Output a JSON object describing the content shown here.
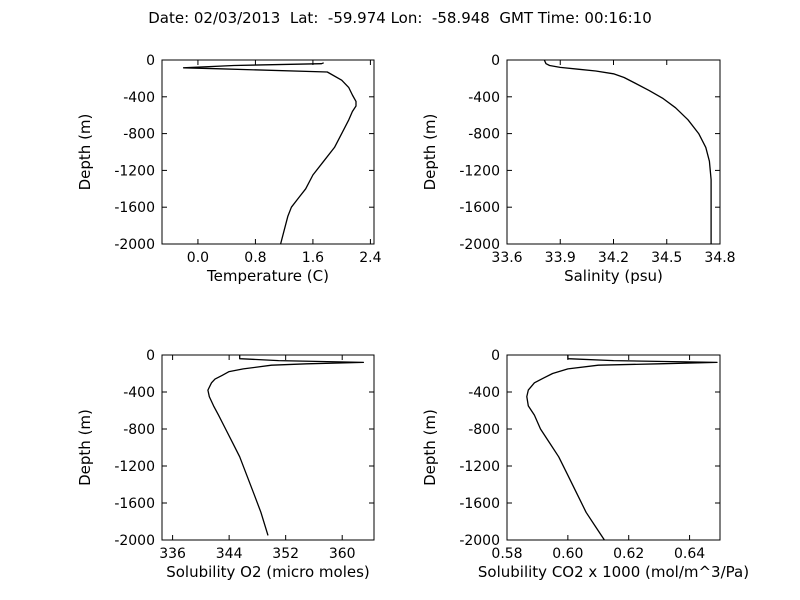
{
  "figure": {
    "suptitle": "Date: 02/03/2013  Lat:  -59.974 Lon:  -58.948  GMT Time: 00:16:10"
  },
  "chart_data": [
    {
      "type": "line",
      "xlabel": "Temperature (C)",
      "ylabel": "Depth (m)",
      "xlim": [
        -0.5,
        2.45
      ],
      "ylim": [
        -2000,
        0
      ],
      "xticks": [
        "0.0",
        "0.8",
        "1.6",
        "2.4"
      ],
      "xtick_values": [
        0.0,
        0.8,
        1.6,
        2.4
      ],
      "yticks": [
        "0",
        "-400",
        "-800",
        "-1200",
        "-1600",
        "-2000"
      ],
      "ytick_values": [
        0,
        -400,
        -800,
        -1200,
        -1600,
        -2000
      ],
      "series": [
        {
          "x": [
            1.75,
            1.72,
            0.5,
            -0.2,
            0.25,
            1.8,
            2.0,
            2.1,
            2.15,
            2.2,
            2.2,
            2.15,
            2.1,
            2.0,
            1.9,
            1.75,
            1.6,
            1.5,
            1.4,
            1.3,
            1.25,
            1.2,
            1.15
          ],
          "y": [
            -30,
            -40,
            -60,
            -85,
            -95,
            -130,
            -220,
            -300,
            -380,
            -450,
            -500,
            -560,
            -650,
            -800,
            -950,
            -1100,
            -1250,
            -1400,
            -1500,
            -1600,
            -1700,
            -1850,
            -2000
          ]
        }
      ]
    },
    {
      "type": "line",
      "xlabel": "Salinity (psu)",
      "ylabel": "Depth (m)",
      "xlim": [
        33.6,
        34.8
      ],
      "ylim": [
        -2000,
        0
      ],
      "xticks": [
        "33.6",
        "33.9",
        "34.2",
        "34.5",
        "34.8"
      ],
      "xtick_values": [
        33.6,
        33.9,
        34.2,
        34.5,
        34.8
      ],
      "yticks": [
        "0",
        "-400",
        "-800",
        "-1200",
        "-1600",
        "-2000"
      ],
      "ytick_values": [
        0,
        -400,
        -800,
        -1200,
        -1600,
        -2000
      ],
      "series": [
        {
          "x": [
            33.81,
            33.82,
            33.84,
            33.9,
            34.0,
            34.1,
            34.2,
            34.26,
            34.32,
            34.4,
            34.48,
            34.55,
            34.62,
            34.68,
            34.72,
            34.74,
            34.75,
            34.75,
            34.75,
            34.75
          ],
          "y": [
            0,
            -40,
            -60,
            -80,
            -100,
            -120,
            -150,
            -190,
            -250,
            -330,
            -420,
            -520,
            -650,
            -800,
            -950,
            -1100,
            -1300,
            -1500,
            -1700,
            -2000
          ]
        }
      ]
    },
    {
      "type": "line",
      "xlabel": "Solubility O2 (micro moles)",
      "ylabel": "Depth (m)",
      "xlim": [
        334.5,
        364.5
      ],
      "ylim": [
        -2000,
        0
      ],
      "xticks": [
        "336",
        "344",
        "352",
        "360"
      ],
      "xtick_values": [
        336,
        344,
        352,
        360
      ],
      "yticks": [
        "0",
        "-400",
        "-800",
        "-1200",
        "-1600",
        "-2000"
      ],
      "ytick_values": [
        0,
        -400,
        -800,
        -1200,
        -1600,
        -2000
      ],
      "series": [
        {
          "x": [
            345.5,
            345.5,
            351.0,
            363.0,
            355.0,
            350.0,
            346.0,
            344.0,
            343.0,
            342.0,
            341.5,
            341.0,
            341.2,
            341.8,
            342.5,
            343.5,
            344.5,
            345.5,
            346.5,
            347.5,
            348.5,
            349.5
          ],
          "y": [
            0,
            -40,
            -60,
            -80,
            -95,
            -110,
            -150,
            -180,
            -220,
            -260,
            -300,
            -380,
            -450,
            -550,
            -650,
            -800,
            -950,
            -1100,
            -1300,
            -1500,
            -1700,
            -1950
          ]
        }
      ]
    },
    {
      "type": "line",
      "xlabel": "Solubility CO2 x 1000 (mol/m^3/Pa)",
      "ylabel": "Depth (m)",
      "xlim": [
        0.58,
        0.65
      ],
      "ylim": [
        -2000,
        0
      ],
      "xticks": [
        "0.58",
        "0.60",
        "0.62",
        "0.64"
      ],
      "xtick_values": [
        0.58,
        0.6,
        0.62,
        0.64
      ],
      "yticks": [
        "0",
        "-400",
        "-800",
        "-1200",
        "-1600",
        "-2000"
      ],
      "ytick_values": [
        0,
        -400,
        -800,
        -1200,
        -1600,
        -2000
      ],
      "series": [
        {
          "x": [
            0.6,
            0.6,
            0.615,
            0.649,
            0.63,
            0.61,
            0.6,
            0.595,
            0.592,
            0.589,
            0.587,
            0.5865,
            0.587,
            0.589,
            0.591,
            0.594,
            0.597,
            0.6,
            0.603,
            0.606,
            0.609,
            0.612
          ],
          "y": [
            0,
            -40,
            -60,
            -80,
            -95,
            -110,
            -150,
            -200,
            -250,
            -300,
            -380,
            -450,
            -550,
            -650,
            -800,
            -950,
            -1100,
            -1300,
            -1500,
            -1700,
            -1850,
            -2000
          ]
        }
      ]
    }
  ]
}
